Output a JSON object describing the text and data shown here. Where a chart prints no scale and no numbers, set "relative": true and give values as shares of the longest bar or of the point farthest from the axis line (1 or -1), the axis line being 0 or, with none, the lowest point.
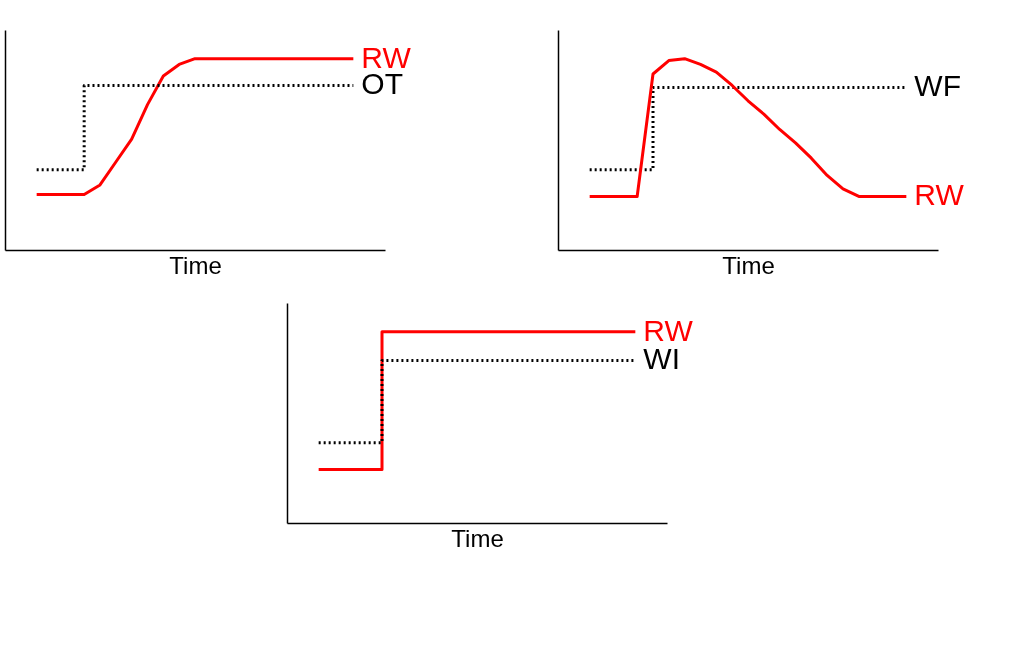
{
  "chart_data": [
    {
      "type": "line",
      "relative": true,
      "xlabel": "Time",
      "categories": [
        null,
        null,
        null,
        null,
        null,
        null,
        null,
        null,
        null,
        null,
        null,
        null,
        null,
        null,
        null,
        null,
        null,
        null,
        null,
        null,
        null
      ],
      "series": [
        {
          "name": "RW",
          "color": "#ff0000",
          "values": [
            0.29,
            0.29,
            0.29,
            0.29,
            0.34,
            0.46,
            0.58,
            0.76,
            0.91,
            0.97,
            1,
            1,
            1,
            1,
            1,
            1,
            1,
            1,
            1,
            1,
            1
          ]
        },
        {
          "name": "OT",
          "type": "step",
          "color": "#000000",
          "line_style": "dotted",
          "values": [
            0.42,
            0.42,
            0.42,
            0.86,
            0.86,
            0.86,
            0.86,
            0.86,
            0.86,
            0.86,
            0.86,
            0.86,
            0.86,
            0.86,
            0.86,
            0.86,
            0.86,
            0.86,
            0.86,
            0.86,
            0.86
          ]
        }
      ]
    },
    {
      "type": "line",
      "relative": true,
      "xlabel": "Time",
      "categories": [
        null,
        null,
        null,
        null,
        null,
        null,
        null,
        null,
        null,
        null,
        null,
        null,
        null,
        null,
        null,
        null,
        null,
        null,
        null,
        null,
        null
      ],
      "series": [
        {
          "name": "WF",
          "type": "step",
          "color": "#000000",
          "line_style": "dotted",
          "values": [
            0.42,
            0.42,
            0.42,
            0.42,
            0.85,
            0.85,
            0.85,
            0.85,
            0.85,
            0.85,
            0.85,
            0.85,
            0.85,
            0.85,
            0.85,
            0.85,
            0.85,
            0.85,
            0.85,
            0.85,
            0.85
          ]
        },
        {
          "name": "RW",
          "color": "#ff0000",
          "values": [
            0.28,
            0.28,
            0.28,
            0.28,
            0.92,
            0.99,
            1,
            0.97,
            0.93,
            0.86,
            0.78,
            0.71,
            0.63,
            0.56,
            0.48,
            0.39,
            0.32,
            0.28,
            0.28,
            0.28,
            0.28
          ]
        }
      ]
    },
    {
      "type": "line",
      "relative": true,
      "xlabel": "Time",
      "categories": [
        null,
        null,
        null,
        null,
        null,
        null,
        null,
        null,
        null,
        null,
        null,
        null,
        null,
        null,
        null,
        null,
        null,
        null,
        null,
        null,
        null
      ],
      "series": [
        {
          "name": "RW",
          "type": "step",
          "color": "#ff0000",
          "values": [
            0.28,
            0.28,
            0.28,
            0.28,
            1,
            1,
            1,
            1,
            1,
            1,
            1,
            1,
            1,
            1,
            1,
            1,
            1,
            1,
            1,
            1,
            1
          ]
        },
        {
          "name": "WI",
          "type": "step",
          "color": "#000000",
          "line_style": "dotted",
          "values": [
            0.42,
            0.42,
            0.42,
            0.42,
            0.85,
            0.85,
            0.85,
            0.85,
            0.85,
            0.85,
            0.85,
            0.85,
            0.85,
            0.85,
            0.85,
            0.85,
            0.85,
            0.85,
            0.85,
            0.85,
            0.85
          ]
        }
      ]
    }
  ]
}
